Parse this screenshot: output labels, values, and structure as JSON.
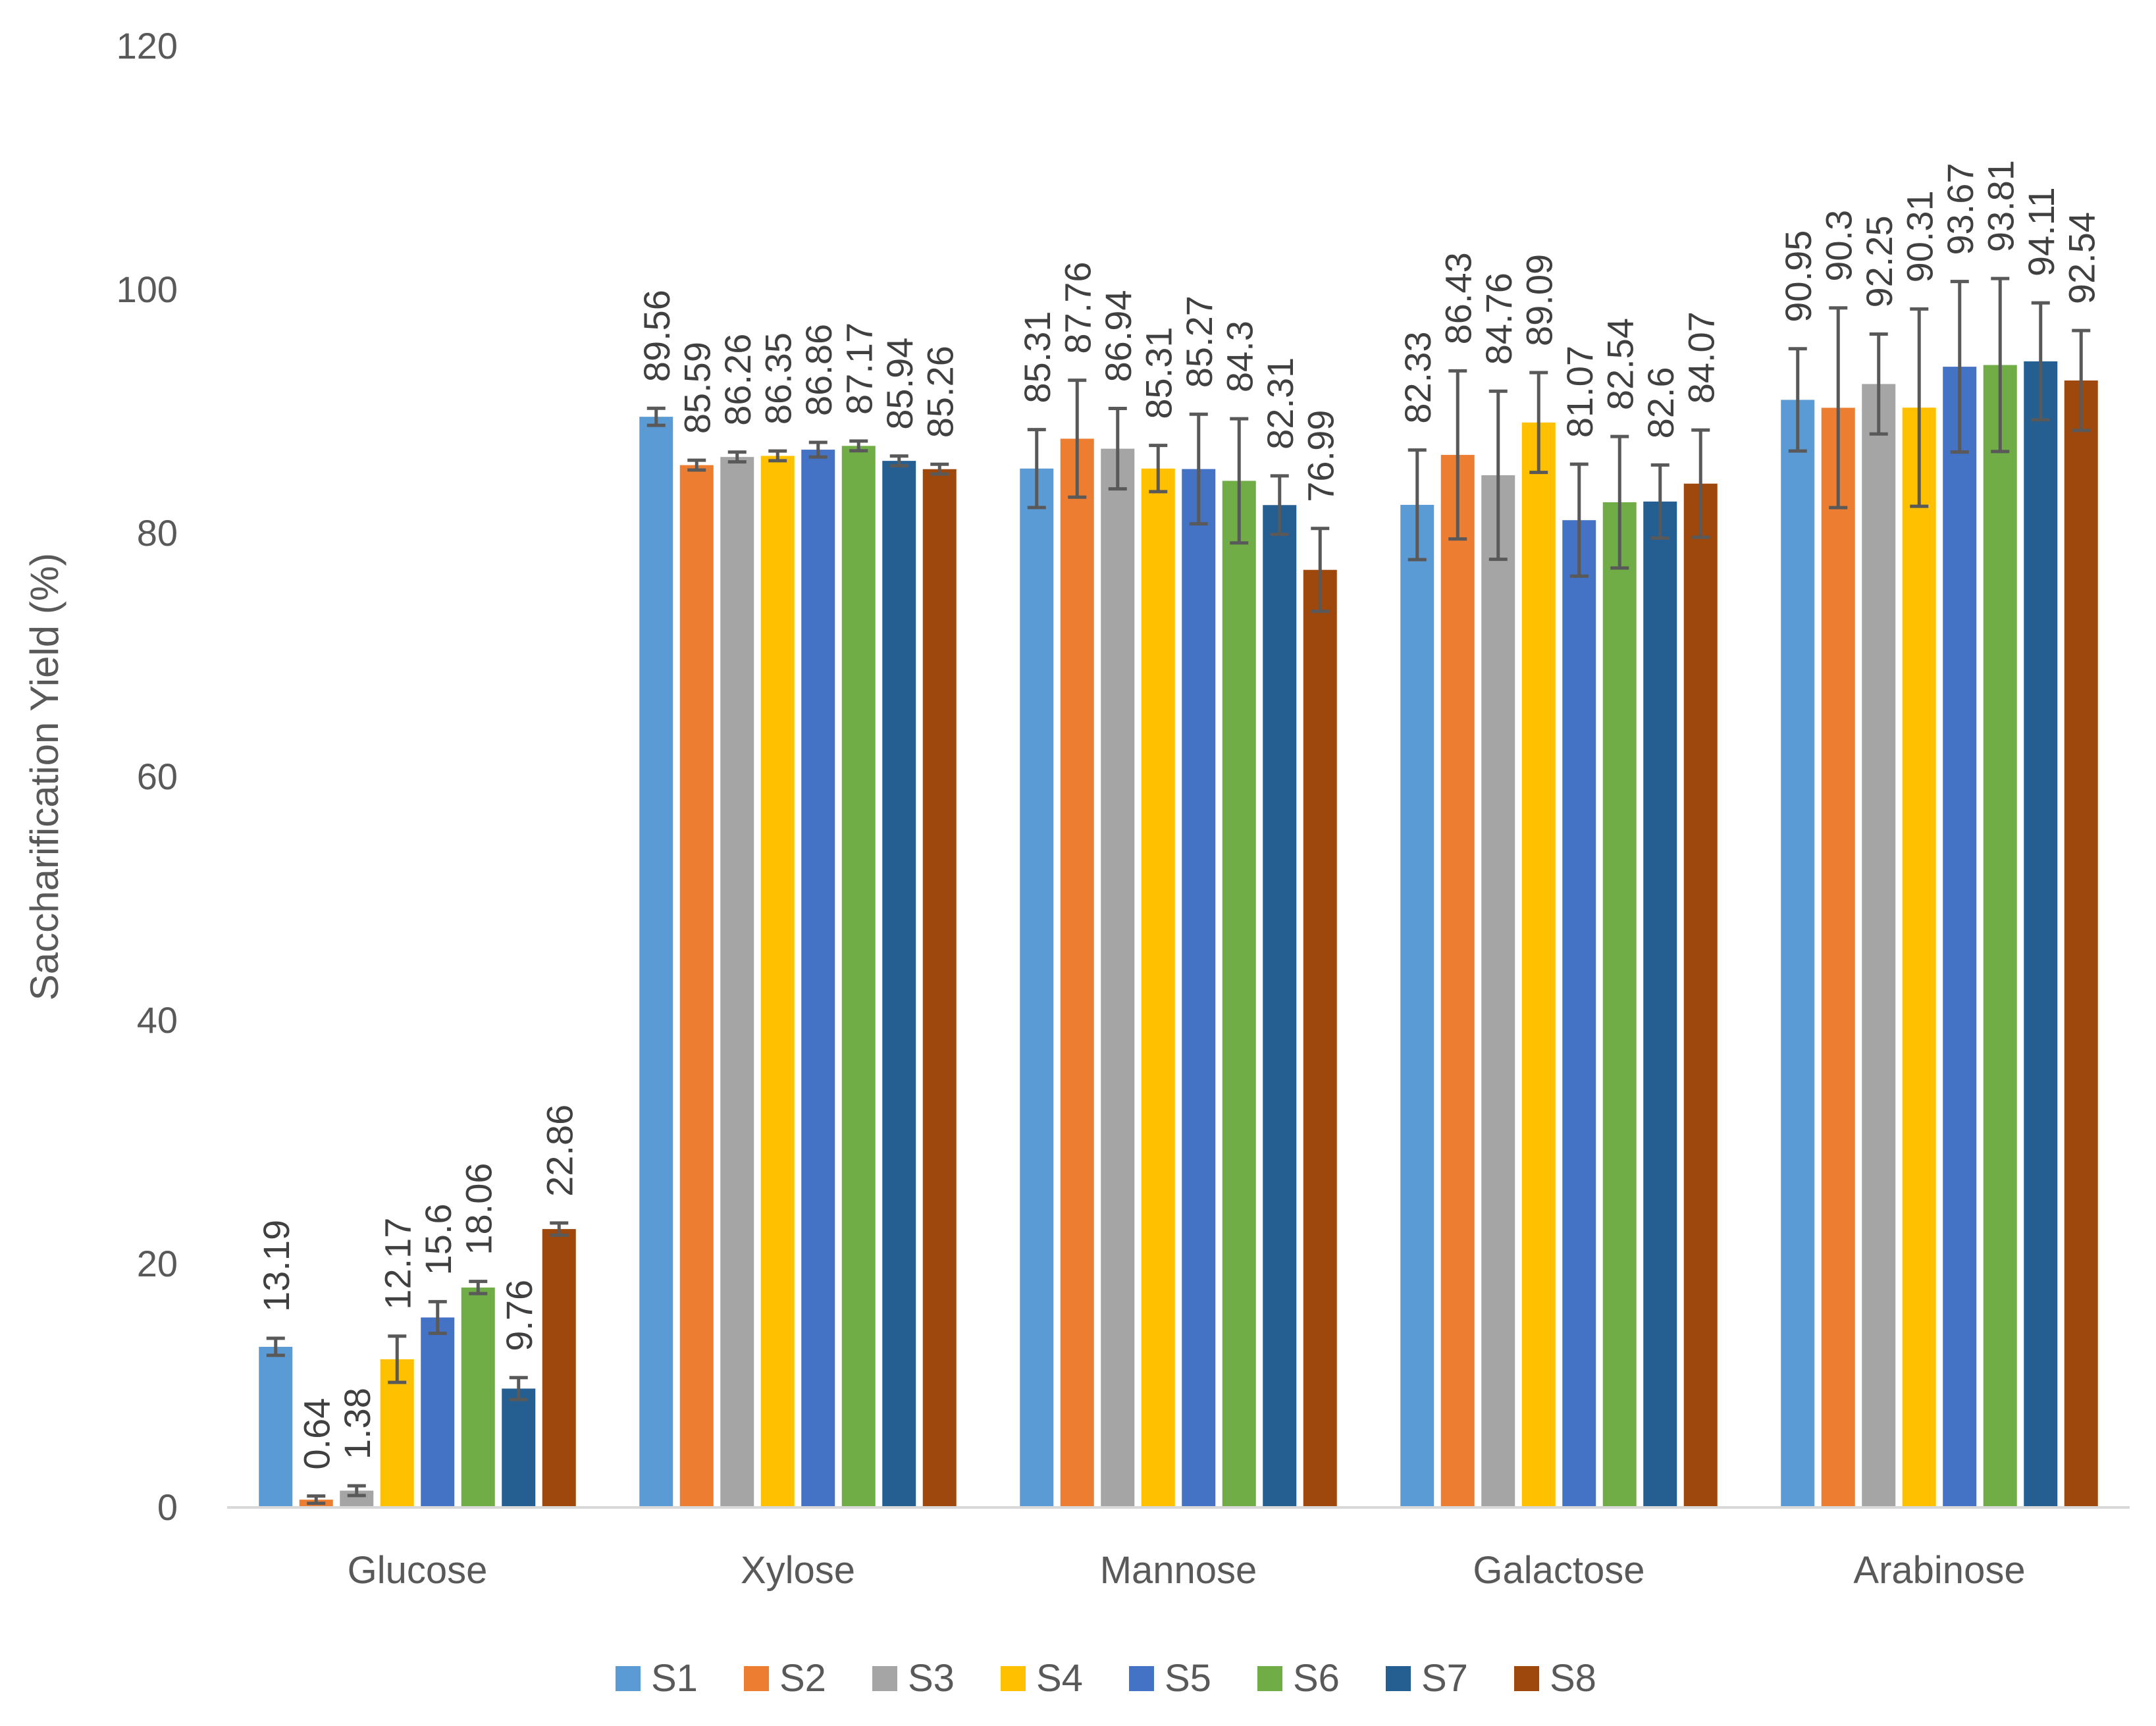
{
  "chart_data": {
    "type": "bar",
    "title": "",
    "xlabel": "",
    "ylabel": "Saccharification Yield (%)",
    "ylim": [
      0,
      120
    ],
    "yticks": [
      0,
      20,
      40,
      60,
      80,
      100,
      120
    ],
    "grid": false,
    "legend_position": "bottom",
    "categories": [
      "Glucose",
      "Xylose",
      "Mannose",
      "Galactose",
      "Arabinose"
    ],
    "series": [
      {
        "name": "S1",
        "color": "#5B9BD5",
        "values": [
          13.19,
          89.56,
          85.31,
          82.33,
          90.95
        ],
        "errors": [
          0.7,
          0.7,
          3.2,
          4.5,
          4.2
        ],
        "labels": [
          "13.19",
          "89.56",
          "85.31",
          "82.33",
          "90.95"
        ]
      },
      {
        "name": "S2",
        "color": "#ED7D31",
        "values": [
          0.64,
          85.59,
          87.76,
          86.43,
          90.3
        ],
        "errors": [
          0.3,
          0.4,
          4.8,
          6.9,
          8.2
        ],
        "labels": [
          "0.64",
          "85.59",
          "87.76",
          "86.43",
          "90.3"
        ]
      },
      {
        "name": "S3",
        "color": "#A5A5A5",
        "values": [
          1.38,
          86.26,
          86.94,
          84.76,
          92.25
        ],
        "errors": [
          0.4,
          0.4,
          3.3,
          6.9,
          4.1
        ],
        "labels": [
          "1.38",
          "86.26",
          "86.94",
          "84.76",
          "92.25"
        ]
      },
      {
        "name": "S4",
        "color": "#FFC000",
        "values": [
          12.17,
          86.35,
          85.31,
          89.09,
          90.31
        ],
        "errors": [
          1.9,
          0.4,
          1.9,
          4.1,
          8.1
        ],
        "labels": [
          "12.17",
          "86.35",
          "85.31",
          "89.09",
          "90.31"
        ]
      },
      {
        "name": "S5",
        "color": "#4472C4",
        "values": [
          15.6,
          86.86,
          85.27,
          81.07,
          93.67
        ],
        "errors": [
          1.3,
          0.6,
          4.5,
          4.6,
          7.0
        ],
        "labels": [
          "15.6",
          "86.86",
          "85.27",
          "81.07",
          "93.67"
        ]
      },
      {
        "name": "S6",
        "color": "#70AD47",
        "values": [
          18.06,
          87.17,
          84.3,
          82.54,
          93.81
        ],
        "errors": [
          0.5,
          0.4,
          5.1,
          5.4,
          7.1
        ],
        "labels": [
          "18.06",
          "87.17",
          "84.3",
          "82.54",
          "93.81"
        ]
      },
      {
        "name": "S7",
        "color": "#255E91",
        "values": [
          9.76,
          85.94,
          82.31,
          82.6,
          94.11
        ],
        "errors": [
          0.9,
          0.4,
          2.4,
          3.0,
          4.8
        ],
        "labels": [
          "9.76",
          "85.94",
          "82.31",
          "82.6",
          "94.11"
        ]
      },
      {
        "name": "S8",
        "color": "#9E480E",
        "values": [
          22.86,
          85.26,
          76.99,
          84.07,
          92.54
        ],
        "errors": [
          0.5,
          0.4,
          3.4,
          4.4,
          4.1
        ],
        "labels": [
          "22.86",
          "85.26",
          "76.99",
          "84.07",
          "92.54"
        ]
      }
    ]
  },
  "colors": {
    "axis": "#D9D9D9",
    "error_bar": "#595959",
    "text": "#595959"
  }
}
